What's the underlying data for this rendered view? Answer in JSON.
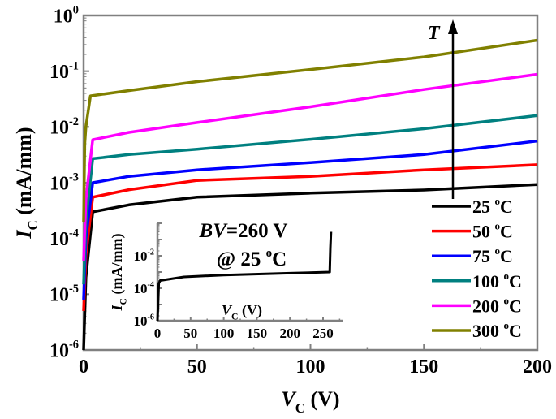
{
  "chart_data": [
    {
      "type": "line",
      "xlabel": {
        "main": "V",
        "sub": "C",
        "rest": " (V)"
      },
      "ylabel": {
        "main": "I",
        "sub": "C",
        "rest": " (mA/mm)"
      },
      "xlim": [
        0,
        200
      ],
      "ylim": [
        1e-06,
        1
      ],
      "yscale": "log",
      "x_ticks": [
        "0",
        "50",
        "100",
        "150",
        "200"
      ],
      "y_ticks": [
        {
          "base": "10",
          "exp": "-6"
        },
        {
          "base": "10",
          "exp": "-5"
        },
        {
          "base": "10",
          "exp": "-4"
        },
        {
          "base": "10",
          "exp": "-3"
        },
        {
          "base": "10",
          "exp": "-2"
        },
        {
          "base": "10",
          "exp": "-1"
        },
        {
          "base": "10",
          "exp": "0"
        }
      ],
      "grid": false,
      "legend_placement": "bottom-right",
      "annotation_arrow": "T",
      "series": [
        {
          "name": "25 °C",
          "label": "25",
          "unit": "C",
          "deg": "o",
          "color": "#000000",
          "x": [
            0,
            1,
            4,
            20,
            50,
            100,
            150,
            200
          ],
          "y": [
            1e-06,
            2e-05,
            0.0003,
            0.0004,
            0.00055,
            0.00065,
            0.00074,
            0.00093
          ]
        },
        {
          "name": "50 °C",
          "label": "50",
          "unit": "C",
          "deg": "o",
          "color": "#ff0000",
          "x": [
            0,
            1,
            4,
            20,
            50,
            100,
            150,
            200
          ],
          "y": [
            5e-06,
            5e-05,
            0.00055,
            0.00075,
            0.0011,
            0.0013,
            0.0017,
            0.0021
          ]
        },
        {
          "name": "75 °C",
          "label": "75",
          "unit": "C",
          "deg": "o",
          "color": "#0000ff",
          "x": [
            0,
            1,
            4,
            20,
            50,
            100,
            150,
            200
          ],
          "y": [
            8e-06,
            0.0001,
            0.001,
            0.0013,
            0.0017,
            0.0023,
            0.0032,
            0.0056
          ]
        },
        {
          "name": "100 °C",
          "label": "100",
          "unit": "C",
          "deg": "o",
          "color": "#008080",
          "x": [
            0,
            1,
            4,
            20,
            50,
            100,
            150,
            200
          ],
          "y": [
            1.5e-05,
            0.0002,
            0.0027,
            0.0032,
            0.004,
            0.006,
            0.0093,
            0.016
          ]
        },
        {
          "name": "200 °C",
          "label": "200",
          "unit": "C",
          "deg": "o",
          "color": "#ff00ff",
          "x": [
            0,
            1,
            4,
            20,
            50,
            100,
            150,
            200
          ],
          "y": [
            4e-05,
            0.0005,
            0.0059,
            0.008,
            0.012,
            0.023,
            0.047,
            0.088
          ]
        },
        {
          "name": "300 °C",
          "label": "300",
          "unit": "C",
          "deg": "o",
          "color": "#808000",
          "x": [
            0,
            0.5,
            1,
            3,
            20,
            50,
            100,
            150,
            200
          ],
          "y": [
            0.0002,
            0.005,
            0.01,
            0.036,
            0.045,
            0.065,
            0.107,
            0.18,
            0.36
          ]
        }
      ]
    },
    {
      "type": "line",
      "inset": true,
      "xlabel": {
        "main": "V",
        "sub": "C",
        "rest": " (V)"
      },
      "ylabel": {
        "main": "I",
        "sub": "C",
        "rest": " (mA/mm)"
      },
      "xlim": [
        0,
        280
      ],
      "ylim": [
        1e-06,
        1
      ],
      "yscale": "log",
      "x_ticks": [
        "0",
        "50",
        "100",
        "150",
        "200",
        "250"
      ],
      "y_ticks": [
        {
          "base": "10",
          "exp": "-6"
        },
        {
          "base": "10",
          "exp": "-4"
        },
        {
          "base": "10",
          "exp": "-2"
        }
      ],
      "annotation": {
        "bv_italic": "BV",
        "bv_rest": "=260 V",
        "temp_line": "@ 25 ",
        "deg": "o",
        "unit": "C"
      },
      "series": [
        {
          "color": "#000000",
          "x": [
            0,
            2,
            4,
            40,
            100,
            200,
            260,
            261,
            262
          ],
          "y": [
            1e-06,
            0.0002,
            0.0003,
            0.0005,
            0.00065,
            0.00085,
            0.001,
            0.03,
            0.3
          ]
        }
      ]
    }
  ]
}
